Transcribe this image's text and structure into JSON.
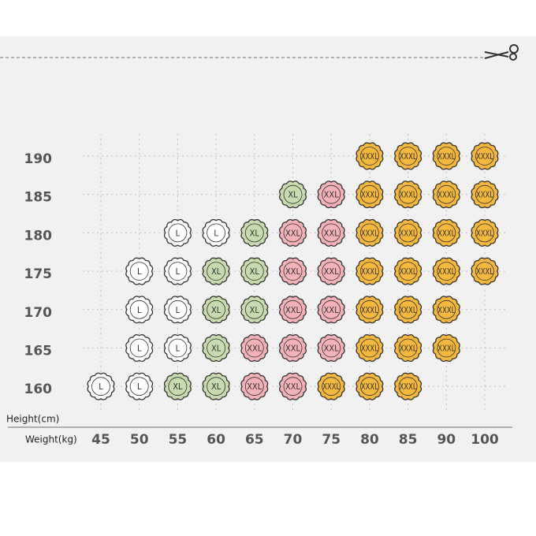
{
  "axis_titles": {
    "y": "Height(cm)",
    "x": "Weight(kg)"
  },
  "columns": [
    "45",
    "50",
    "55",
    "60",
    "65",
    "70",
    "75",
    "80",
    "85",
    "90",
    "100"
  ],
  "colors": {
    "L": "#ffffff",
    "XL": "#c8dbae",
    "XXL": "#f2b2b8",
    "XXXL": "#f5b83e"
  },
  "rows": [
    {
      "height": "190",
      "cells": [
        null,
        null,
        null,
        null,
        null,
        null,
        null,
        "XXXL",
        "XXXL",
        "XXXL",
        "XXXL"
      ]
    },
    {
      "height": "185",
      "cells": [
        null,
        null,
        null,
        null,
        null,
        "XL",
        "XXL",
        "XXXL",
        "XXXL",
        "XXXL",
        "XXXL"
      ]
    },
    {
      "height": "180",
      "cells": [
        null,
        null,
        "L",
        "L",
        "XL",
        "XXL",
        "XXL",
        "XXXL",
        "XXXL",
        "XXXL",
        "XXXL"
      ]
    },
    {
      "height": "175",
      "cells": [
        null,
        "L",
        "L",
        "XL",
        "XL",
        "XXL",
        "XXL",
        "XXXL",
        "XXXL",
        "XXXL",
        "XXXL"
      ]
    },
    {
      "height": "170",
      "cells": [
        null,
        "L",
        "L",
        "XL",
        "XL",
        "XXL",
        "XXL",
        "XXXL",
        "XXXL",
        "XXXL",
        null
      ]
    },
    {
      "height": "165",
      "cells": [
        null,
        "L",
        "L",
        "XL",
        "XXL",
        "XXL",
        "XXL",
        "XXXL",
        "XXXL",
        "XXXL",
        null
      ]
    },
    {
      "height": "160",
      "cells": [
        "L",
        "L",
        "XL",
        "XL",
        "XXL",
        "XXL",
        "XXXL",
        "XXXL",
        "XXXL",
        null,
        null
      ]
    }
  ]
}
